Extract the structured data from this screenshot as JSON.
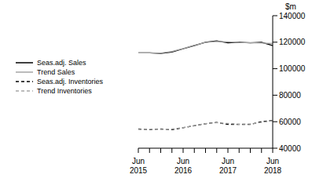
{
  "chart_data": {
    "type": "line",
    "y_label": "$m",
    "categories": [
      "Jun 2015",
      null,
      null,
      null,
      "Jun 2016",
      null,
      null,
      null,
      "Jun 2017",
      null,
      null,
      null,
      "Jun 2018"
    ],
    "series": [
      {
        "name": "Seas.adj. Sales",
        "color": "#000000",
        "line_style": "solid",
        "values": [
          112000,
          112000,
          111500,
          112500,
          115000,
          117500,
          120000,
          121000,
          119500,
          120000,
          119500,
          120000,
          117500
        ]
      },
      {
        "name": "Trend Sales",
        "color": "#a6a6a6",
        "line_style": "solid",
        "values": [
          112000,
          112000,
          111800,
          113000,
          115200,
          117800,
          119800,
          120500,
          120200,
          119800,
          119600,
          119400,
          119000
        ]
      },
      {
        "name": "Seas.adj. Inventories",
        "color": "#000000",
        "line_style": "dashed",
        "values": [
          54500,
          54000,
          54500,
          54000,
          55500,
          57000,
          58500,
          59500,
          58000,
          58000,
          58000,
          60000,
          61000
        ]
      },
      {
        "name": "Trend Inventories",
        "color": "#a6a6a6",
        "line_style": "dashed",
        "values": [
          54300,
          54300,
          54200,
          54500,
          55600,
          57100,
          58600,
          59200,
          58700,
          58200,
          58300,
          59500,
          60700
        ]
      }
    ],
    "ylim": [
      40000,
      140000
    ],
    "yticks": [
      40000,
      60000,
      80000,
      100000,
      120000,
      140000
    ],
    "grid": false,
    "legend": "upper left"
  }
}
